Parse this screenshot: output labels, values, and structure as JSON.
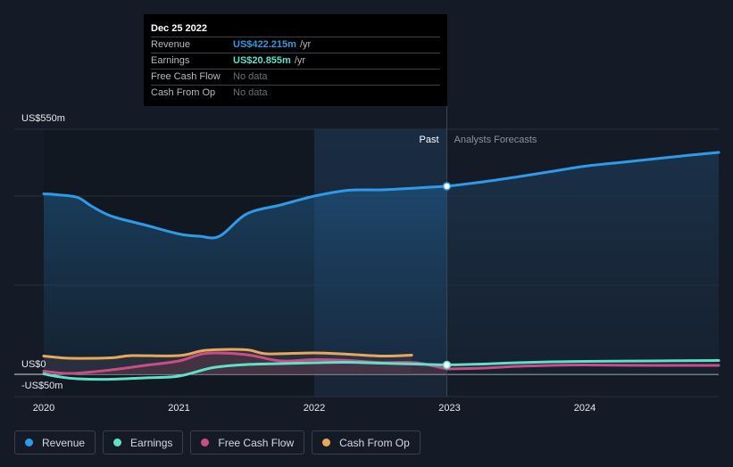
{
  "chart_data": {
    "type": "line",
    "title": "",
    "xlabel": "",
    "ylabel": "",
    "ylim": [
      -50,
      550
    ],
    "y_ticks": [
      {
        "value": 550,
        "label": "US$550m"
      },
      {
        "value": 0,
        "label": "US$0"
      },
      {
        "value": -50,
        "label": "-US$50m"
      }
    ],
    "x_range": [
      2020.0,
      2024.99
    ],
    "x_ticks": [
      {
        "value": 2020,
        "label": "2020"
      },
      {
        "value": 2021,
        "label": "2021"
      },
      {
        "value": 2022,
        "label": "2022"
      },
      {
        "value": 2023,
        "label": "2023"
      },
      {
        "value": 2024,
        "label": "2024"
      }
    ],
    "past_label": "Past",
    "forecast_label": "Analysts Forecasts",
    "past_end_x": 2022.98,
    "highlight_start_x": 2022.0,
    "series": [
      {
        "name": "Revenue",
        "color": "#2f9be8",
        "fill": true,
        "points": [
          [
            2020.0,
            405
          ],
          [
            2020.1,
            403
          ],
          [
            2020.25,
            397
          ],
          [
            2020.35,
            378
          ],
          [
            2020.5,
            355
          ],
          [
            2020.75,
            335
          ],
          [
            2021.0,
            315
          ],
          [
            2021.15,
            310
          ],
          [
            2021.3,
            310
          ],
          [
            2021.5,
            360
          ],
          [
            2021.75,
            380
          ],
          [
            2022.0,
            400
          ],
          [
            2022.25,
            413
          ],
          [
            2022.5,
            414
          ],
          [
            2022.75,
            418
          ],
          [
            2022.98,
            422
          ]
        ],
        "forecast": [
          [
            2022.98,
            422
          ],
          [
            2023.25,
            432
          ],
          [
            2023.5,
            443
          ],
          [
            2023.75,
            455
          ],
          [
            2024.0,
            467
          ],
          [
            2024.25,
            475
          ],
          [
            2024.5,
            483
          ],
          [
            2024.75,
            491
          ],
          [
            2024.99,
            498
          ]
        ]
      },
      {
        "name": "Earnings",
        "color": "#5ee0c9",
        "fill": false,
        "points": [
          [
            2020.0,
            1
          ],
          [
            2020.1,
            -5
          ],
          [
            2020.25,
            -10
          ],
          [
            2020.5,
            -11
          ],
          [
            2020.75,
            -8
          ],
          [
            2021.0,
            -4
          ],
          [
            2021.25,
            15
          ],
          [
            2021.5,
            22
          ],
          [
            2021.75,
            24
          ],
          [
            2022.0,
            26
          ],
          [
            2022.25,
            27
          ],
          [
            2022.5,
            25
          ],
          [
            2022.75,
            23
          ],
          [
            2022.98,
            21
          ]
        ],
        "forecast": [
          [
            2022.98,
            21
          ],
          [
            2023.25,
            23
          ],
          [
            2023.5,
            26
          ],
          [
            2023.75,
            28
          ],
          [
            2024.0,
            29
          ],
          [
            2024.5,
            30
          ],
          [
            2024.99,
            31
          ]
        ]
      },
      {
        "name": "Free Cash Flow",
        "color": "#c84f86",
        "fill": false,
        "points": [
          [
            2020.0,
            7
          ],
          [
            2020.2,
            2
          ],
          [
            2020.5,
            10
          ],
          [
            2020.75,
            20
          ],
          [
            2021.0,
            30
          ],
          [
            2021.2,
            47
          ],
          [
            2021.5,
            44
          ],
          [
            2021.75,
            30
          ],
          [
            2022.0,
            33
          ],
          [
            2022.25,
            31
          ],
          [
            2022.5,
            26
          ],
          [
            2022.75,
            26
          ],
          [
            2022.98,
            12
          ]
        ],
        "forecast": [
          [
            2022.98,
            12
          ],
          [
            2023.25,
            14
          ],
          [
            2023.5,
            18
          ],
          [
            2023.75,
            20
          ],
          [
            2024.0,
            21
          ],
          [
            2024.5,
            20
          ],
          [
            2024.99,
            20
          ]
        ]
      },
      {
        "name": "Cash From Op",
        "color": "#e8a85c",
        "fill": false,
        "points": [
          [
            2020.0,
            41
          ],
          [
            2020.2,
            36
          ],
          [
            2020.5,
            37
          ],
          [
            2020.65,
            42
          ],
          [
            2021.0,
            42
          ],
          [
            2021.2,
            54
          ],
          [
            2021.5,
            55
          ],
          [
            2021.65,
            46
          ],
          [
            2022.0,
            48
          ],
          [
            2022.25,
            45
          ],
          [
            2022.5,
            41
          ],
          [
            2022.72,
            43
          ]
        ],
        "forecast": []
      }
    ]
  },
  "tooltip": {
    "date": "Dec 25 2022",
    "rows": [
      {
        "label": "Revenue",
        "value": "US$422.215m",
        "unit": "/yr",
        "color": "#2f9be8"
      },
      {
        "label": "Earnings",
        "value": "US$20.855m",
        "unit": "/yr",
        "color": "#5ee0c9"
      },
      {
        "label": "Free Cash Flow",
        "value": "No data"
      },
      {
        "label": "Cash From Op",
        "value": "No data"
      }
    ]
  },
  "legend": [
    {
      "label": "Revenue",
      "color": "#2f9be8"
    },
    {
      "label": "Earnings",
      "color": "#5ee0c9"
    },
    {
      "label": "Free Cash Flow",
      "color": "#c84f86"
    },
    {
      "label": "Cash From Op",
      "color": "#e8a85c"
    }
  ]
}
